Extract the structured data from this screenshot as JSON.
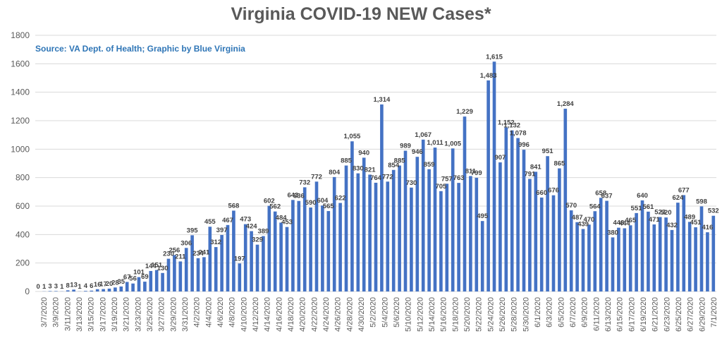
{
  "chart_data": {
    "type": "bar",
    "title": "Virginia COVID-19 NEW Cases*",
    "annotation": "Source: VA Dept. of Health; Graphic by Blue Virginia",
    "xlabel": "",
    "ylabel": "",
    "ylim": [
      0,
      1800
    ],
    "yticks": [
      0,
      200,
      400,
      600,
      800,
      1000,
      1200,
      1400,
      1600,
      1800
    ],
    "grid": true,
    "colors": {
      "bar": "#4472c4",
      "source": "#2e75b6",
      "title": "#595959"
    },
    "tick_labels": [
      "3/7/2020",
      "3/9/2020",
      "3/11/2020",
      "3/13/2020",
      "3/15/2020",
      "3/17/2020",
      "3/19/2020",
      "3/21/2020",
      "3/23/2020",
      "3/25/2020",
      "3/27/2020",
      "3/29/2020",
      "3/31/2020",
      "4/2/2020",
      "4/4/2020",
      "4/6/2020",
      "4/8/2020",
      "4/10/2020",
      "4/12/2020",
      "4/14/2020",
      "4/16/2020",
      "4/18/2020",
      "4/20/2020",
      "4/22/2020",
      "4/24/2020",
      "4/26/2020",
      "4/28/2020",
      "4/30/2020",
      "5/2/2020",
      "5/4/2020",
      "5/6/2020",
      "5/10/2020",
      "5/12/2020",
      "5/14/2020",
      "5/16/2020",
      "5/18/2020",
      "5/20/2020",
      "5/22/2020",
      "5/24/2020",
      "5/26/2020",
      "5/28/2020",
      "5/30/2020",
      "6/1/2020",
      "6/3/2020",
      "6/5/2020",
      "6/7/2020",
      "6/9/2020",
      "6/11/2020",
      "6/13/2020",
      "6/15/2020",
      "6/17/2020",
      "6/19/2020",
      "6/21/2020",
      "6/23/2020",
      "6/25/2020",
      "6/27/2020",
      "6/29/2020",
      "7/1/2020"
    ],
    "values": [
      0,
      1,
      3,
      3,
      1,
      8,
      13,
      1,
      4,
      6,
      16,
      17,
      20,
      28,
      35,
      67,
      56,
      101,
      69,
      144,
      151,
      130,
      230,
      256,
      211,
      306,
      395,
      234,
      241,
      455,
      312,
      397,
      467,
      568,
      197,
      473,
      424,
      329,
      389,
      602,
      562,
      484,
      453,
      643,
      636,
      732,
      590,
      772,
      604,
      565,
      804,
      622,
      885,
      1055,
      830,
      940,
      821,
      764,
      1314,
      772,
      854,
      885,
      989,
      730,
      946,
      1067,
      859,
      1011,
      705,
      757,
      1005,
      763,
      1229,
      811,
      799,
      495,
      1483,
      1615,
      907,
      1152,
      1132,
      1078,
      996,
      791,
      841,
      660,
      951,
      676,
      865,
      1284,
      570,
      487,
      439,
      470,
      564,
      658,
      637,
      380,
      448,
      444,
      465,
      551,
      640,
      561,
      471,
      523,
      520,
      432,
      624,
      677,
      489,
      451,
      598,
      416,
      532
    ]
  }
}
